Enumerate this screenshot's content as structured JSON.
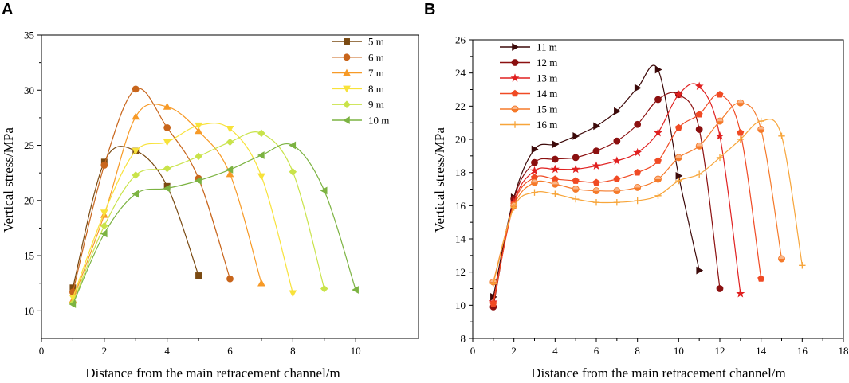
{
  "chart_data": [
    {
      "panel": "A",
      "type": "line",
      "xlabel": "Distance from the main retracement channel/m",
      "ylabel": "Vertical stress/MPa",
      "xlim": [
        0,
        12
      ],
      "ylim": [
        7.5,
        35
      ],
      "xticks": [
        0,
        2,
        4,
        6,
        8,
        10
      ],
      "yticks": [
        10,
        15,
        20,
        25,
        30,
        35
      ],
      "legend_position": "top-right",
      "series": [
        {
          "name": "5 m",
          "color": "#7a4a12",
          "marker": "square",
          "x": [
            1,
            2,
            3,
            4,
            5
          ],
          "y": [
            12.1,
            23.5,
            24.5,
            21.3,
            13.2
          ]
        },
        {
          "name": "6 m",
          "color": "#c8651b",
          "marker": "circle",
          "x": [
            1,
            2,
            3,
            4,
            5,
            6
          ],
          "y": [
            11.7,
            23.2,
            30.1,
            26.6,
            22.0,
            12.9
          ]
        },
        {
          "name": "7 m",
          "color": "#f79a27",
          "marker": "triangle-up",
          "x": [
            1,
            2,
            3,
            4,
            5,
            6,
            7
          ],
          "y": [
            11.0,
            18.7,
            27.6,
            28.5,
            26.3,
            22.4,
            12.5
          ]
        },
        {
          "name": "8 m",
          "color": "#f8e23a",
          "marker": "triangle-down",
          "x": [
            1,
            2,
            3,
            4,
            5,
            6,
            7,
            8
          ],
          "y": [
            11.2,
            18.9,
            24.5,
            25.3,
            26.8,
            26.5,
            22.2,
            11.6
          ]
        },
        {
          "name": "9 m",
          "color": "#c9e34a",
          "marker": "diamond",
          "x": [
            1,
            2,
            3,
            4,
            5,
            6,
            7,
            8,
            9
          ],
          "y": [
            10.7,
            17.7,
            22.3,
            22.9,
            24.0,
            25.3,
            26.1,
            22.6,
            12.0
          ]
        },
        {
          "name": "10 m",
          "color": "#7cb342",
          "marker": "triangle-left",
          "x": [
            1,
            2,
            3,
            4,
            5,
            6,
            7,
            8,
            9,
            10
          ],
          "y": [
            10.6,
            17.0,
            20.6,
            21.1,
            21.8,
            22.8,
            24.1,
            25.0,
            20.9,
            11.9
          ]
        }
      ]
    },
    {
      "panel": "B",
      "type": "line",
      "xlabel": "Distance from the main retracement channel/m",
      "ylabel": "Vertical stress/MPa",
      "xlim": [
        0,
        18
      ],
      "ylim": [
        8,
        26
      ],
      "xticks": [
        0,
        2,
        4,
        6,
        8,
        10,
        12,
        14,
        16,
        18
      ],
      "yticks": [
        8,
        10,
        12,
        14,
        16,
        18,
        20,
        22,
        24,
        26
      ],
      "legend_position": "top-left",
      "series": [
        {
          "name": "11 m",
          "color": "#3d0a0a",
          "marker": "triangle-right",
          "x": [
            1,
            2,
            3,
            4,
            5,
            6,
            7,
            8,
            9,
            10,
            11
          ],
          "y": [
            10.5,
            16.5,
            19.4,
            19.7,
            20.2,
            20.8,
            21.7,
            23.1,
            24.2,
            17.8,
            12.1
          ]
        },
        {
          "name": "12 m",
          "color": "#8b1010",
          "marker": "circle",
          "x": [
            1,
            2,
            3,
            4,
            5,
            6,
            7,
            8,
            9,
            10,
            11,
            12
          ],
          "y": [
            9.9,
            16.4,
            18.6,
            18.8,
            18.9,
            19.3,
            19.9,
            20.9,
            22.4,
            22.7,
            20.6,
            11.0
          ]
        },
        {
          "name": "13 m",
          "color": "#e02020",
          "marker": "star",
          "x": [
            1,
            2,
            3,
            4,
            5,
            6,
            7,
            8,
            9,
            10,
            11,
            12,
            13
          ],
          "y": [
            10.2,
            16.2,
            18.1,
            18.2,
            18.2,
            18.4,
            18.7,
            19.2,
            20.4,
            22.7,
            23.2,
            20.2,
            10.7
          ]
        },
        {
          "name": "14 m",
          "color": "#f04a24",
          "marker": "pentagon",
          "x": [
            1,
            2,
            3,
            4,
            5,
            6,
            7,
            8,
            9,
            10,
            11,
            12,
            13,
            14
          ],
          "y": [
            10.1,
            16.1,
            17.7,
            17.6,
            17.5,
            17.4,
            17.6,
            18.0,
            18.7,
            20.7,
            21.5,
            22.7,
            20.4,
            11.6
          ]
        },
        {
          "name": "15 m",
          "color": "#f57a2a",
          "marker": "half-circle",
          "x": [
            1,
            2,
            3,
            4,
            5,
            6,
            7,
            8,
            9,
            10,
            11,
            12,
            13,
            14,
            15
          ],
          "y": [
            11.4,
            16.0,
            17.4,
            17.3,
            17.0,
            16.9,
            16.9,
            17.1,
            17.6,
            18.9,
            19.6,
            21.1,
            22.2,
            20.6,
            12.8
          ]
        },
        {
          "name": "16 m",
          "color": "#f7a53a",
          "marker": "plus",
          "x": [
            1,
            2,
            3,
            4,
            5,
            6,
            7,
            8,
            9,
            10,
            11,
            12,
            13,
            14,
            15,
            16
          ],
          "y": [
            11.3,
            15.9,
            16.8,
            16.7,
            16.4,
            16.2,
            16.2,
            16.3,
            16.6,
            17.5,
            17.9,
            18.9,
            20.0,
            21.1,
            20.2,
            12.4
          ]
        }
      ]
    }
  ]
}
